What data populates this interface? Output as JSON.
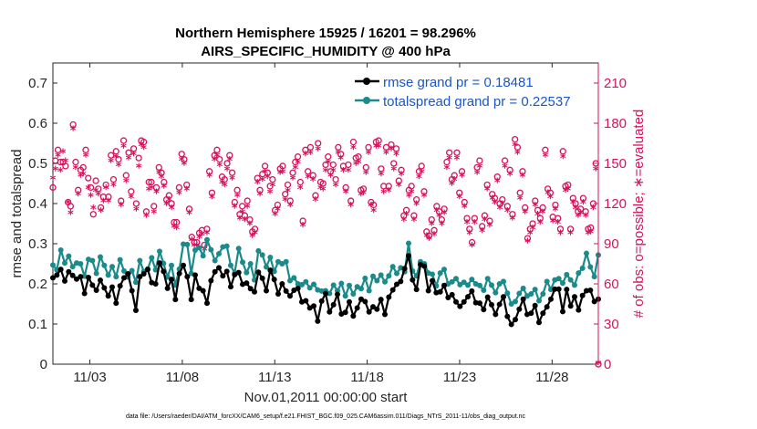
{
  "chart_data": {
    "type": "line",
    "title": "Northern Hemisphere 15925 / 16201 = 98.296%",
    "subtitle": "AIRS_SPECIFIC_HUMIDITY @ 400 hPa",
    "xlabel": "Nov.01,2011 00:00:00 start",
    "ylabel": "rmse and totalspread",
    "ylabel_right": "# of obs: o=possible; ∗=evaluated",
    "xlim": [
      1,
      30.5
    ],
    "ylim": [
      0,
      0.75
    ],
    "ylim_right": [
      0,
      225
    ],
    "x_ticks": [
      {
        "label": "11/03",
        "x": 3
      },
      {
        "label": "11/08",
        "x": 8
      },
      {
        "label": "11/13",
        "x": 13
      },
      {
        "label": "11/18",
        "x": 18
      },
      {
        "label": "11/23",
        "x": 23
      },
      {
        "label": "11/28",
        "x": 28
      }
    ],
    "y_ticks": [
      "0",
      "0.1",
      "0.2",
      "0.3",
      "0.4",
      "0.5",
      "0.6",
      "0.7"
    ],
    "y_tick_values": [
      0,
      0.1,
      0.2,
      0.3,
      0.4,
      0.5,
      0.6,
      0.7
    ],
    "y_ticks_right": [
      "0",
      "30",
      "60",
      "90",
      "120",
      "150",
      "180",
      "210"
    ],
    "y_tick_values_right": [
      0,
      30,
      60,
      90,
      120,
      150,
      180,
      210
    ],
    "legend_position": "top-right",
    "series": [
      {
        "name": "rmse grand pr = 0.18481",
        "color": "#000000",
        "axis": "left",
        "values": [
          0.215,
          0.222,
          0.236,
          0.207,
          0.23,
          0.221,
          0.212,
          0.218,
          0.176,
          0.216,
          0.197,
          0.184,
          0.209,
          0.19,
          0.17,
          0.192,
          0.152,
          0.195,
          0.215,
          0.225,
          0.183,
          0.134,
          0.218,
          0.225,
          0.236,
          0.203,
          0.2,
          0.252,
          0.231,
          0.189,
          0.211,
          0.161,
          0.226,
          0.246,
          0.218,
          0.161,
          0.222,
          0.189,
          0.183,
          0.152,
          0.208,
          0.23,
          0.24,
          0.22,
          0.231,
          0.193,
          0.223,
          0.228,
          0.199,
          0.202,
          0.188,
          0.18,
          0.229,
          0.214,
          0.183,
          0.234,
          0.211,
          0.175,
          0.2,
          0.182,
          0.17,
          0.184,
          0.189,
          0.155,
          0.158,
          0.14,
          0.145,
          0.107,
          0.157,
          0.176,
          0.13,
          0.148,
          0.174,
          0.125,
          0.129,
          0.155,
          0.12,
          0.14,
          0.162,
          0.156,
          0.13,
          0.143,
          0.137,
          0.161,
          0.124,
          0.167,
          0.185,
          0.199,
          0.206,
          0.238,
          0.27,
          0.21,
          0.186,
          0.248,
          0.244,
          0.183,
          0.208,
          0.178,
          0.18,
          0.196,
          0.166,
          0.173,
          0.155,
          0.144,
          0.155,
          0.168,
          0.182,
          0.153,
          0.152,
          0.136,
          0.167,
          0.148,
          0.124,
          0.149,
          0.168,
          0.119,
          0.099,
          0.111,
          0.137,
          0.162,
          0.124,
          0.127,
          0.146,
          0.104,
          0.127,
          0.143,
          0.162,
          0.187,
          0.187,
          0.131,
          0.186,
          0.145,
          0.168,
          0.135,
          0.171,
          0.183,
          0.184,
          0.156,
          0.162
        ]
      },
      {
        "name": "totalspread grand pr = 0.22537",
        "color": "#1a8a8a",
        "axis": "left",
        "values": [
          0.247,
          0.235,
          0.284,
          0.252,
          0.269,
          0.243,
          0.252,
          0.25,
          0.219,
          0.261,
          0.258,
          0.226,
          0.267,
          0.246,
          0.222,
          0.243,
          0.218,
          0.26,
          0.232,
          0.217,
          0.233,
          0.204,
          0.258,
          0.231,
          0.237,
          0.265,
          0.235,
          0.281,
          0.251,
          0.217,
          0.246,
          0.197,
          0.237,
          0.299,
          0.298,
          0.226,
          0.284,
          0.29,
          0.27,
          0.31,
          0.285,
          0.258,
          0.275,
          0.292,
          0.294,
          0.246,
          0.227,
          0.288,
          0.254,
          0.228,
          0.25,
          0.21,
          0.282,
          0.272,
          0.242,
          0.266,
          0.231,
          0.255,
          0.25,
          0.255,
          0.208,
          0.215,
          0.2,
          0.198,
          0.205,
          0.19,
          0.199,
          0.185,
          0.182,
          0.183,
          0.176,
          0.197,
          0.183,
          0.201,
          0.17,
          0.196,
          0.175,
          0.193,
          0.188,
          0.214,
          0.183,
          0.219,
          0.208,
          0.222,
          0.205,
          0.22,
          0.243,
          0.226,
          0.24,
          0.23,
          0.301,
          0.232,
          0.22,
          0.255,
          0.25,
          0.227,
          0.224,
          0.195,
          0.227,
          0.236,
          0.2,
          0.205,
          0.213,
          0.198,
          0.204,
          0.197,
          0.211,
          0.2,
          0.196,
          0.184,
          0.213,
          0.197,
          0.178,
          0.2,
          0.206,
          0.177,
          0.15,
          0.156,
          0.176,
          0.189,
          0.17,
          0.175,
          0.186,
          0.158,
          0.175,
          0.206,
          0.186,
          0.21,
          0.213,
          0.202,
          0.223,
          0.21,
          0.197,
          0.227,
          0.239,
          0.276,
          0.242,
          0.218,
          0.272
        ]
      }
    ],
    "obs_possible": {
      "name": "o=possible",
      "color": "#d7125d",
      "axis": "right",
      "values": [
        132,
        152,
        160,
        151,
        151,
        148,
        121,
        118,
        179,
        151,
        130,
        145,
        147,
        160,
        139,
        132,
        112,
        137,
        131,
        117,
        125,
        134,
        125,
        156,
        138,
        159,
        153,
        122,
        167,
        141,
        158,
        129,
        161,
        120,
        154,
        167,
        166,
        114,
        136,
        136,
        118,
        132,
        147,
        143,
        136,
        123,
        126,
        120,
        106,
        106,
        132,
        157,
        153,
        134,
        116,
        95,
        91,
        91,
        98,
        100,
        89,
        101,
        144,
        128,
        156,
        160,
        153,
        140,
        138,
        150,
        156,
        143,
        121,
        130,
        112,
        118,
        111,
        122,
        108,
        99,
        101,
        139,
        130,
        142,
        148,
        143,
        133,
        138,
        115,
        119,
        146,
        148,
        127,
        134,
        122,
        143,
        151,
        155,
        136,
        107,
        160,
        144,
        162,
        141,
        126,
        165,
        136,
        135,
        149,
        155,
        144,
        149,
        138,
        162,
        157,
        148,
        132,
        149,
        122,
        166,
        154,
        155,
        130,
        131,
        147,
        162,
        121,
        119,
        166,
        167,
        146,
        133,
        162,
        133,
        164,
        150,
        161,
        137,
        145,
        111,
        115,
        130,
        133,
        111,
        123,
        144,
        148,
        129,
        99,
        96,
        108,
        100,
        118,
        114,
        108,
        116,
        151,
        158,
        138,
        141,
        158,
        128,
        144,
        121,
        109,
        101,
        91,
        109,
        147,
        152,
        103,
        111,
        134,
        107,
        127,
        124,
        140,
        120,
        123,
        152,
        118,
        145,
        112,
        168,
        162,
        128,
        144,
        117,
        94,
        101,
        105,
        122,
        115,
        109,
        117,
        160,
        131,
        128,
        110,
        119,
        109,
        101,
        159,
        133,
        134,
        101,
        124,
        120,
        114,
        116,
        124,
        114,
        101,
        102,
        120,
        150,
        0
      ]
    },
    "obs_evaluated": {
      "name": "∗=evaluated",
      "color": "#d7125d",
      "axis": "right",
      "values": [
        138,
        145,
        155,
        144,
        158,
        151,
        120,
        112,
        175,
        146,
        126,
        140,
        141,
        155,
        131,
        125,
        116,
        129,
        126,
        114,
        121,
        131,
        121,
        151,
        133,
        154,
        148,
        118,
        162,
        136,
        153,
        124,
        156,
        115,
        147,
        163,
        161,
        110,
        130,
        131,
        113,
        128,
        142,
        139,
        132,
        119,
        122,
        116,
        102,
        101,
        127,
        152,
        149,
        130,
        112,
        92,
        88,
        88,
        94,
        96,
        85,
        97,
        140,
        124,
        152,
        155,
        148,
        135,
        133,
        145,
        152,
        138,
        117,
        125,
        108,
        113,
        107,
        117,
        104,
        95,
        97,
        135,
        126,
        137,
        143,
        139,
        128,
        133,
        111,
        115,
        142,
        143,
        122,
        129,
        118,
        138,
        146,
        150,
        131,
        103,
        156,
        139,
        157,
        137,
        122,
        160,
        131,
        130,
        144,
        150,
        140,
        144,
        133,
        157,
        153,
        144,
        128,
        144,
        118,
        161,
        149,
        150,
        126,
        127,
        142,
        157,
        118,
        114,
        162,
        162,
        141,
        128,
        157,
        129,
        160,
        145,
        156,
        133,
        141,
        107,
        111,
        125,
        128,
        107,
        119,
        139,
        143,
        125,
        95,
        93,
        104,
        96,
        114,
        110,
        104,
        112,
        146,
        153,
        134,
        137,
        153,
        124,
        140,
        117,
        105,
        97,
        88,
        105,
        142,
        147,
        99,
        107,
        130,
        103,
        123,
        120,
        136,
        116,
        119,
        147,
        114,
        141,
        108,
        163,
        157,
        123,
        140,
        113,
        91,
        97,
        101,
        118,
        111,
        105,
        113,
        155,
        127,
        124,
        106,
        115,
        105,
        97,
        154,
        129,
        130,
        97,
        120,
        116,
        110,
        112,
        120,
        110,
        97,
        98,
        116,
        145,
        0
      ]
    }
  },
  "footer": "data file: /Users/raeder/DAI/ATM_forcXX/CAM6_setup/f.e21.FHIST_BGC.f09_025.CAM6assim.011/Diags_NTrS_2011-11/obs_diag_output.nc"
}
